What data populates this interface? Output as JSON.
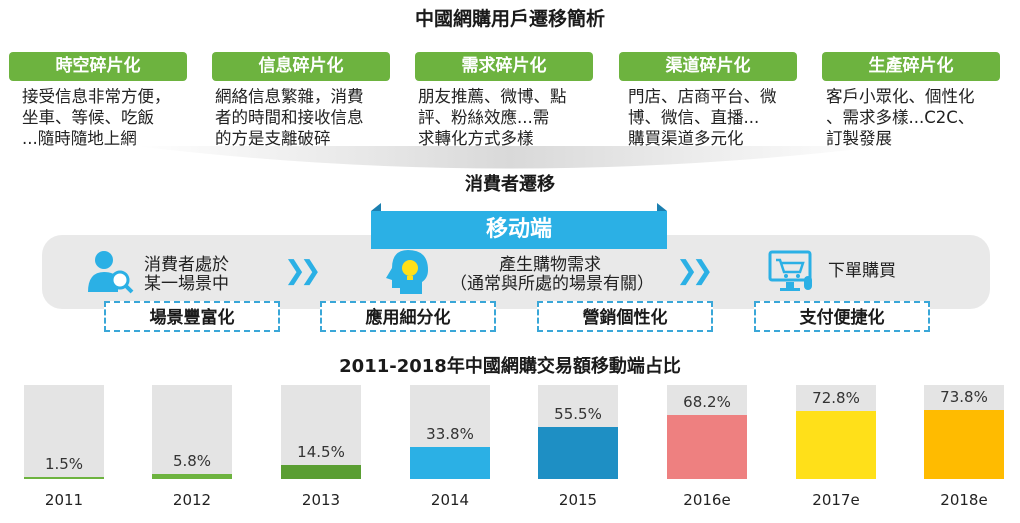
{
  "title": "中國網購用戶遷移簡析",
  "categories": [
    {
      "tag": "時空碎片化",
      "desc": "接受信息非常方便，\n坐車、等候、吃飯\n...隨時隨地上網"
    },
    {
      "tag": "信息碎片化",
      "desc": "網絡信息繁雜，消費\n者的時間和接收信息\n的方是支離破碎"
    },
    {
      "tag": "需求碎片化",
      "desc": "朋友推薦、微博、點\n評、粉絲效應...需\n求轉化方式多樣"
    },
    {
      "tag": "渠道碎片化",
      "desc": "門店、店商平台、微\n博、微信、直播...\n購買渠道多元化"
    },
    {
      "tag": "生產碎片化",
      "desc": "客戶小眾化、個性化\n、需求多樣...C2C、\n訂製發展"
    }
  ],
  "consumer_migration": "消費者遷移",
  "mobile_label": "移动端",
  "steps": [
    {
      "text": "消費者處於\n某一場景中",
      "icon": "person-search-icon"
    },
    {
      "text": "產生購物需求\n（通常與所處的場景有關）",
      "icon": "head-idea-icon"
    },
    {
      "text": "下單購買",
      "icon": "shopping-cart-screen-icon"
    }
  ],
  "arrows": [
    "double-chevron-right-icon",
    "double-chevron-right-icon"
  ],
  "features": [
    "場景豐富化",
    "應用細分化",
    "營銷個性化",
    "支付便捷化"
  ],
  "chart_title": "2011-2018年中國網購交易額移動端占比",
  "chart_data": {
    "type": "bar",
    "title": "2011-2018年中國網購交易額移動端占比",
    "categories": [
      "2011",
      "2012",
      "2013",
      "2014",
      "2015",
      "2016e",
      "2017e",
      "2018e"
    ],
    "values": [
      1.5,
      5.8,
      14.5,
      33.8,
      55.5,
      68.2,
      72.8,
      73.8
    ],
    "value_labels": [
      "1.5%",
      "5.8%",
      "14.5%",
      "33.8%",
      "55.5%",
      "68.2%",
      "72.8%",
      "73.8%"
    ],
    "unit": "%",
    "ylim": [
      0,
      100
    ],
    "colors": [
      "#6db33f",
      "#6db33f",
      "#5a9e32",
      "#2bb0e5",
      "#1e8fc4",
      "#ee8080",
      "#ffe019",
      "#ffbb00"
    ],
    "background_color": "#e4e4e4"
  }
}
